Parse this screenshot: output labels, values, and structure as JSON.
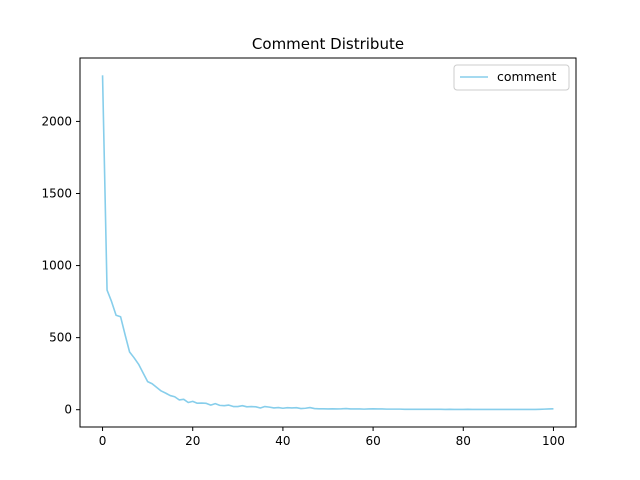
{
  "colors": {
    "series": "#87ceeb",
    "axis": "#000000",
    "legend_border": "#cccccc"
  },
  "chart_data": {
    "type": "line",
    "title": "Comment Distribute",
    "xlabel": "",
    "ylabel": "",
    "xlim": [
      -5,
      105
    ],
    "ylim": [
      -120,
      2440
    ],
    "xticks": [
      0,
      20,
      40,
      60,
      80,
      100
    ],
    "xtick_labels": [
      "0",
      "20",
      "40",
      "60",
      "80",
      "100"
    ],
    "yticks": [
      0,
      500,
      1000,
      1500,
      2000
    ],
    "ytick_labels": [
      "0",
      "500",
      "1000",
      "1500",
      "2000"
    ],
    "grid": false,
    "legend_position": "top-right",
    "series": [
      {
        "name": "comment",
        "x": [
          0,
          1,
          2,
          3,
          4,
          5,
          6,
          7,
          8,
          9,
          10,
          11,
          12,
          13,
          14,
          15,
          16,
          17,
          18,
          19,
          20,
          21,
          22,
          23,
          24,
          25,
          26,
          27,
          28,
          29,
          30,
          31,
          32,
          33,
          34,
          35,
          36,
          37,
          38,
          39,
          40,
          41,
          42,
          43,
          44,
          45,
          46,
          47,
          48,
          49,
          50,
          51,
          52,
          53,
          54,
          55,
          56,
          57,
          58,
          59,
          60,
          61,
          62,
          63,
          64,
          65,
          66,
          67,
          68,
          69,
          70,
          71,
          72,
          73,
          74,
          75,
          76,
          77,
          78,
          79,
          80,
          81,
          82,
          83,
          84,
          85,
          86,
          87,
          88,
          89,
          90,
          91,
          92,
          93,
          94,
          95,
          96,
          97,
          98,
          99,
          100
        ],
        "values": [
          2320,
          830,
          750,
          655,
          645,
          520,
          400,
          360,
          315,
          255,
          195,
          180,
          155,
          130,
          115,
          98,
          90,
          68,
          72,
          50,
          58,
          45,
          46,
          44,
          32,
          42,
          30,
          28,
          32,
          22,
          22,
          28,
          20,
          22,
          20,
          12,
          22,
          18,
          12,
          15,
          10,
          14,
          12,
          14,
          8,
          10,
          15,
          8,
          6,
          6,
          5,
          6,
          5,
          6,
          8,
          5,
          5,
          5,
          4,
          5,
          6,
          5,
          5,
          4,
          4,
          4,
          4,
          3,
          3,
          3,
          3,
          3,
          3,
          3,
          3,
          3,
          2,
          3,
          2,
          2,
          2,
          3,
          2,
          2,
          2,
          2,
          2,
          2,
          2,
          2,
          2,
          2,
          2,
          2,
          2,
          2,
          2,
          3,
          4,
          5,
          6
        ]
      }
    ]
  }
}
